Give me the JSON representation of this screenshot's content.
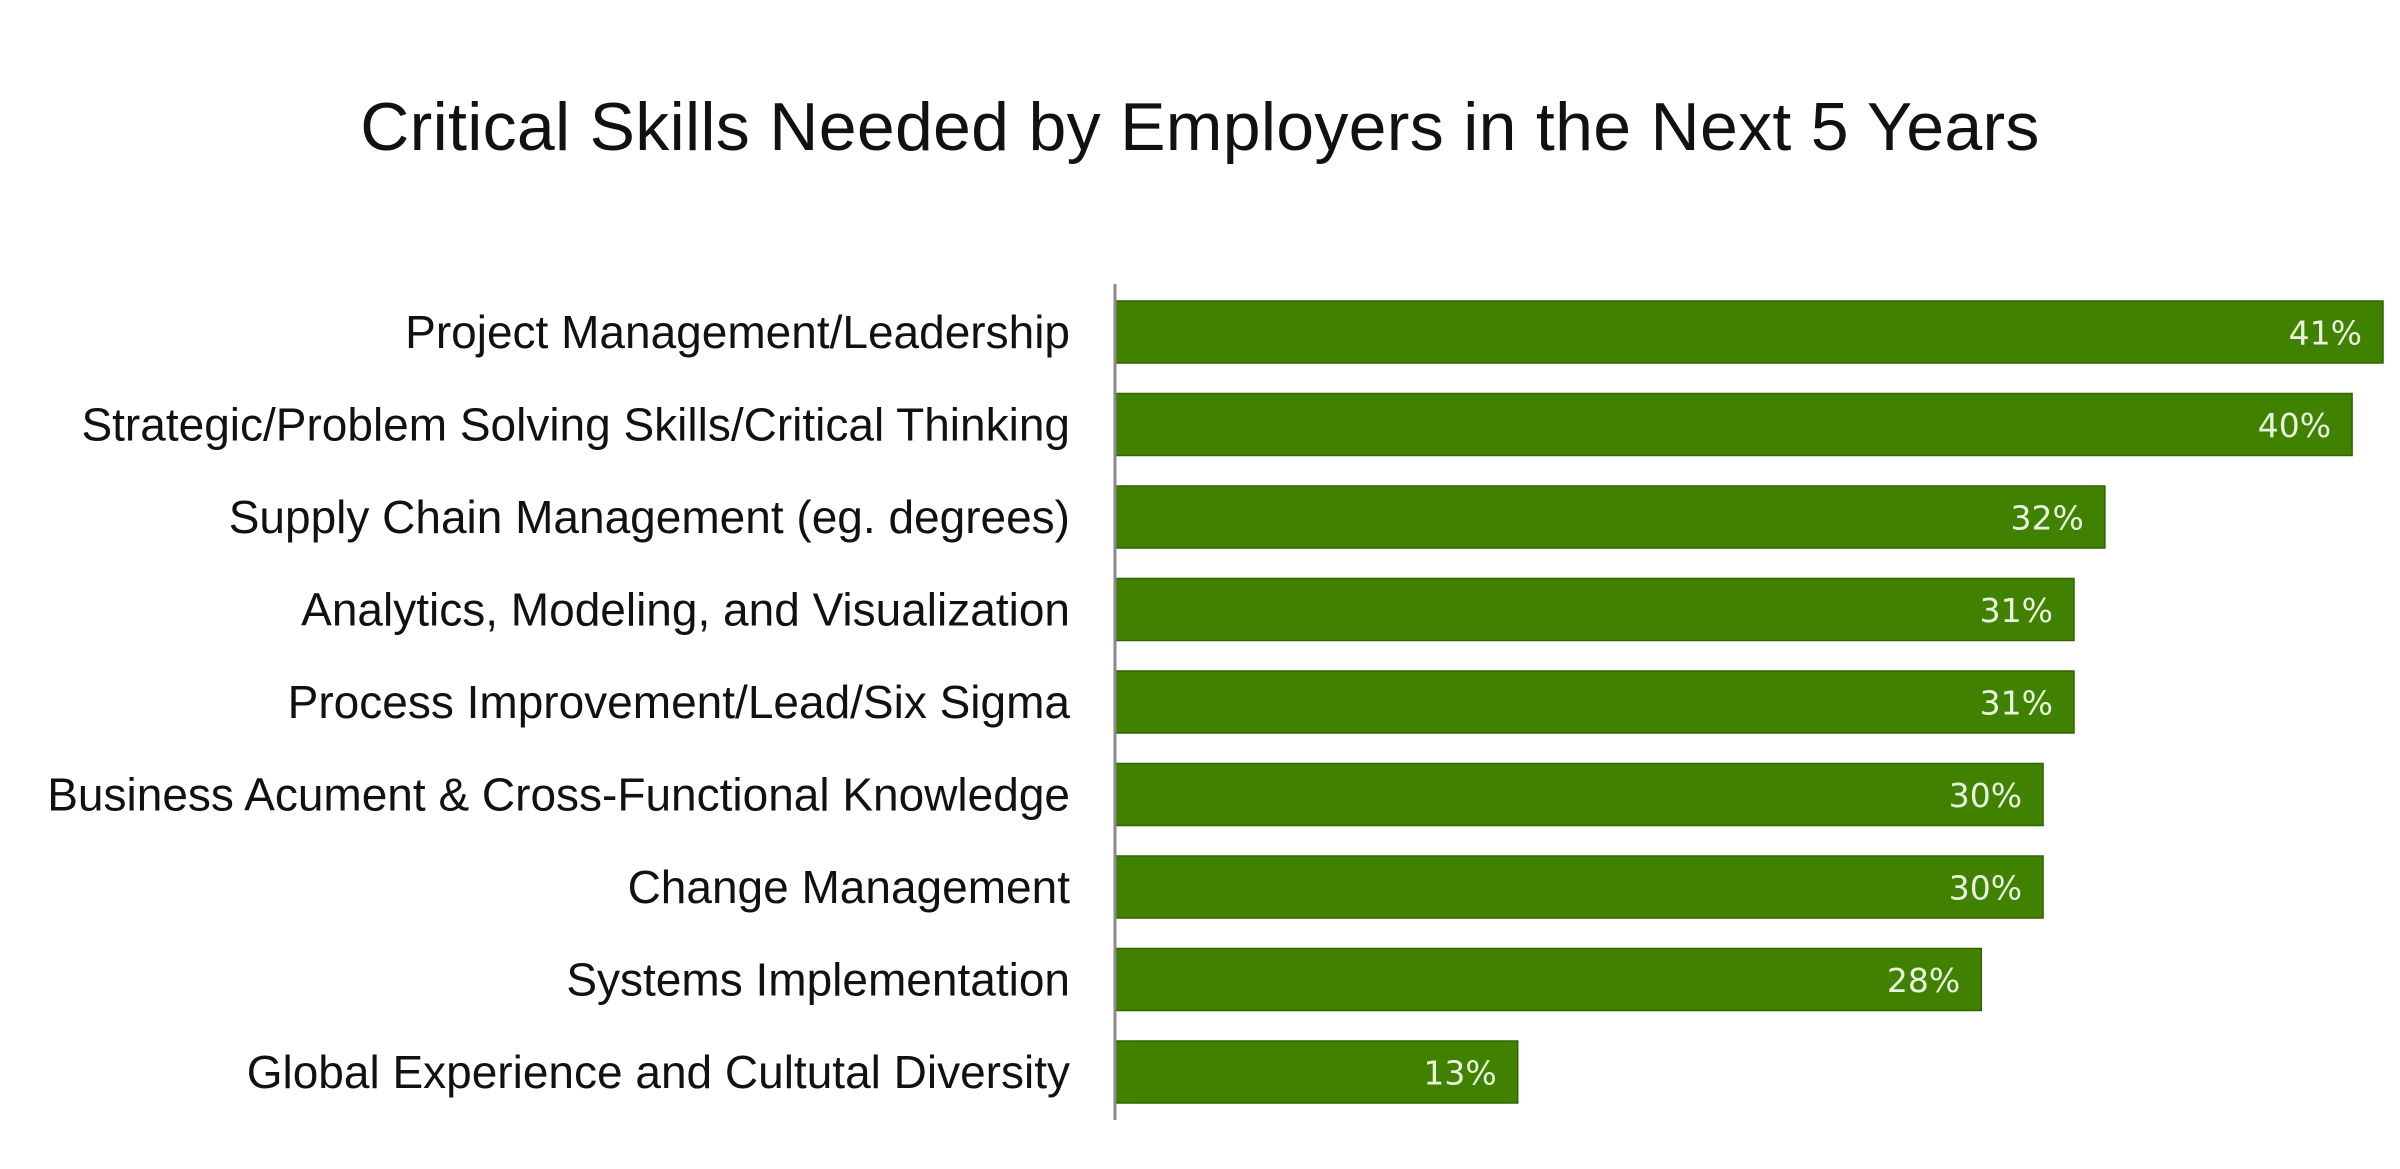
{
  "chart_data": {
    "type": "bar",
    "orientation": "horizontal",
    "title": "Critical Skills Needed by Employers in the Next 5 Years",
    "xlabel": "",
    "ylabel": "",
    "categories": [
      "Project Management/Leadership",
      "Strategic/Problem Solving Skills/Critical Thinking",
      "Supply Chain Management (eg. degrees)",
      "Analytics, Modeling, and Visualization",
      "Process Improvement/Lead/Six Sigma",
      "Business Acument & Cross-Functional Knowledge",
      "Change Management",
      "Systems Implementation",
      "Global Experience and Cultutal Diversity"
    ],
    "values": [
      41,
      40,
      32,
      31,
      31,
      30,
      30,
      28,
      13
    ],
    "value_labels": [
      "41%",
      "40%",
      "32%",
      "31%",
      "31%",
      "30%",
      "30%",
      "28%",
      "13%"
    ],
    "unit": "%",
    "xlim": [
      0,
      41
    ],
    "grid": false,
    "legend": "none",
    "colors": {
      "bar": "#408200",
      "bar_edge": "#2f6400",
      "value_text": "#e9f2dc",
      "axis": "#8a8a8a"
    }
  }
}
